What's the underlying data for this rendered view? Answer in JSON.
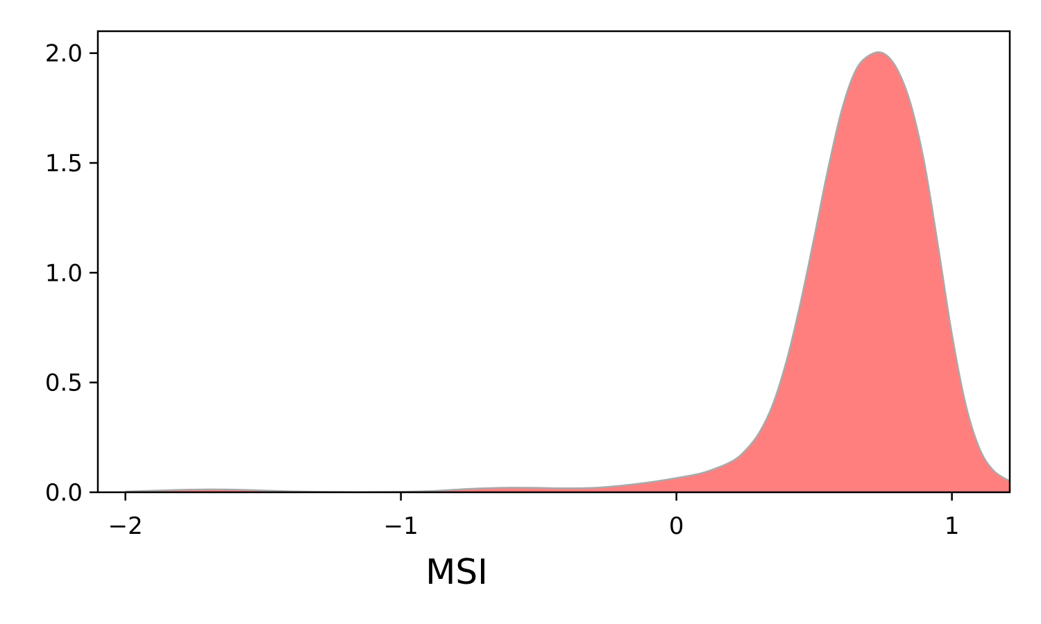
{
  "chart_data": {
    "type": "area",
    "title": "",
    "xlabel": "MSI",
    "ylabel": "",
    "xlim": [
      -2.1,
      1.21
    ],
    "ylim": [
      0,
      2.1
    ],
    "x_ticks": [
      {
        "value": -2,
        "label": "−2"
      },
      {
        "value": -1,
        "label": "−1"
      },
      {
        "value": 0,
        "label": "0"
      },
      {
        "value": 1,
        "label": "1"
      }
    ],
    "y_ticks": [
      {
        "value": 0,
        "label": "0.0"
      },
      {
        "value": 0.5,
        "label": "0.5"
      },
      {
        "value": 1.0,
        "label": "1.0"
      },
      {
        "value": 1.5,
        "label": "1.5"
      },
      {
        "value": 2.0,
        "label": "2.0"
      }
    ],
    "grid": false,
    "legend": "none",
    "fill_color": "#ff7f7f",
    "line_color": "#aaaaaa",
    "series": [
      {
        "x": [
          -2.0,
          -1.9,
          -1.8,
          -1.7,
          -1.6,
          -1.5,
          -1.4,
          -1.3,
          -1.2,
          -1.1,
          -1.0,
          -0.9,
          -0.8,
          -0.7,
          -0.6,
          -0.5,
          -0.4,
          -0.3,
          -0.2,
          -0.1,
          0.0,
          0.1,
          0.2,
          0.25,
          0.3,
          0.35,
          0.4,
          0.45,
          0.5,
          0.55,
          0.6,
          0.65,
          0.7,
          0.75,
          0.8,
          0.85,
          0.9,
          0.95,
          1.0,
          1.05,
          1.1,
          1.15,
          1.21
        ],
        "y": [
          0.003,
          0.007,
          0.011,
          0.013,
          0.012,
          0.008,
          0.004,
          0.002,
          0.001,
          0.001,
          0.002,
          0.005,
          0.012,
          0.018,
          0.021,
          0.02,
          0.018,
          0.02,
          0.03,
          0.045,
          0.065,
          0.09,
          0.14,
          0.19,
          0.27,
          0.4,
          0.6,
          0.86,
          1.16,
          1.47,
          1.74,
          1.92,
          1.99,
          2.0,
          1.93,
          1.77,
          1.5,
          1.12,
          0.72,
          0.4,
          0.2,
          0.1,
          0.05
        ]
      }
    ]
  }
}
